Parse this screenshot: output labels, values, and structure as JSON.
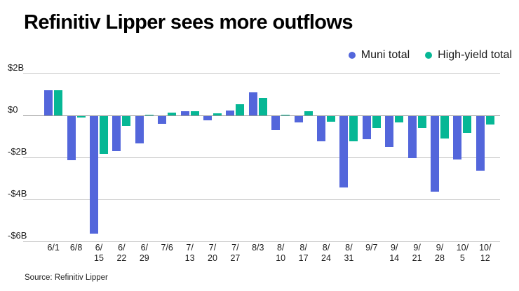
{
  "source_note": "Source: Refinitiv Lipper",
  "chart_data": {
    "type": "bar",
    "title": "Refinitiv Lipper sees more outflows",
    "unit": "$B",
    "grid": "horizontal",
    "legend_position": "top-right",
    "ylim": [
      -6,
      2
    ],
    "y_ticks": [
      {
        "value": 2,
        "label": "$2B"
      },
      {
        "value": 0,
        "label": "$0"
      },
      {
        "value": -2,
        "label": "-$2B"
      },
      {
        "value": -4,
        "label": "-$4B"
      },
      {
        "value": -6,
        "label": "-$6B"
      }
    ],
    "categories": [
      "6/1",
      "6/8",
      "6/15",
      "6/22",
      "6/29",
      "7/6",
      "7/13",
      "7/20",
      "7/27",
      "8/3",
      "8/10",
      "8/17",
      "8/24",
      "8/31",
      "9/7",
      "9/14",
      "9/21",
      "9/28",
      "10/5",
      "10/12"
    ],
    "tick_lines": [
      [
        "6/1"
      ],
      [
        "6/8"
      ],
      [
        "6/",
        "15"
      ],
      [
        "6/",
        "22"
      ],
      [
        "6/",
        "29"
      ],
      [
        "7/6"
      ],
      [
        "7/",
        "13"
      ],
      [
        "7/",
        "20"
      ],
      [
        "7/",
        "27"
      ],
      [
        "8/3"
      ],
      [
        "8/",
        "10"
      ],
      [
        "8/",
        "17"
      ],
      [
        "8/",
        "24"
      ],
      [
        "8/",
        "31"
      ],
      [
        "9/7"
      ],
      [
        "9/",
        "14"
      ],
      [
        "9/",
        "21"
      ],
      [
        "9/",
        "28"
      ],
      [
        "10/",
        "5"
      ],
      [
        "10/",
        "12"
      ]
    ],
    "series": [
      {
        "name": "Muni total",
        "color": "#5366DB",
        "values": [
          1.2,
          -2.1,
          -5.6,
          -1.65,
          -1.3,
          -0.35,
          0.2,
          -0.2,
          0.25,
          1.1,
          -0.65,
          -0.3,
          -1.2,
          -3.4,
          -1.1,
          -1.45,
          -2.0,
          -3.6,
          -2.05,
          -2.6
        ]
      },
      {
        "name": "High-yield total",
        "color": "#06B795",
        "values": [
          1.2,
          -0.05,
          -1.8,
          -0.45,
          0.05,
          0.15,
          0.2,
          0.1,
          0.55,
          0.85,
          0.05,
          0.2,
          -0.25,
          -1.2,
          -0.55,
          -0.3,
          -0.55,
          -1.05,
          -0.8,
          -0.4
        ]
      }
    ]
  }
}
